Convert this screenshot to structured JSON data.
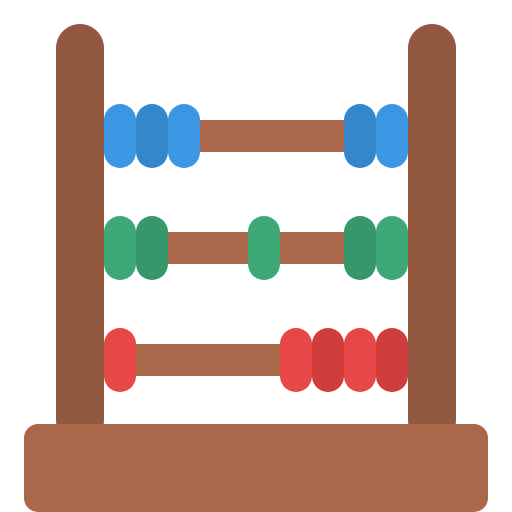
{
  "illustration": {
    "icon": "abacus-icon",
    "colors": {
      "frame": "#935940",
      "rod": "#AB674A",
      "base": "#AB674A",
      "blue": "#3B97E3",
      "blue_dark": "#3587CB",
      "green": "#3EA877",
      "green_dark": "#37966B",
      "red": "#E84747",
      "red_dark": "#CF3C3C"
    },
    "rows": [
      {
        "name": "top",
        "beads": [
          "blue",
          "blue_dark",
          "blue",
          "blue_dark",
          "blue"
        ]
      },
      {
        "name": "middle",
        "beads": [
          "green",
          "green_dark",
          "green",
          "green_dark",
          "green"
        ]
      },
      {
        "name": "bottom",
        "beads": [
          "red",
          "red",
          "red_dark",
          "red",
          "red_dark"
        ]
      }
    ]
  }
}
